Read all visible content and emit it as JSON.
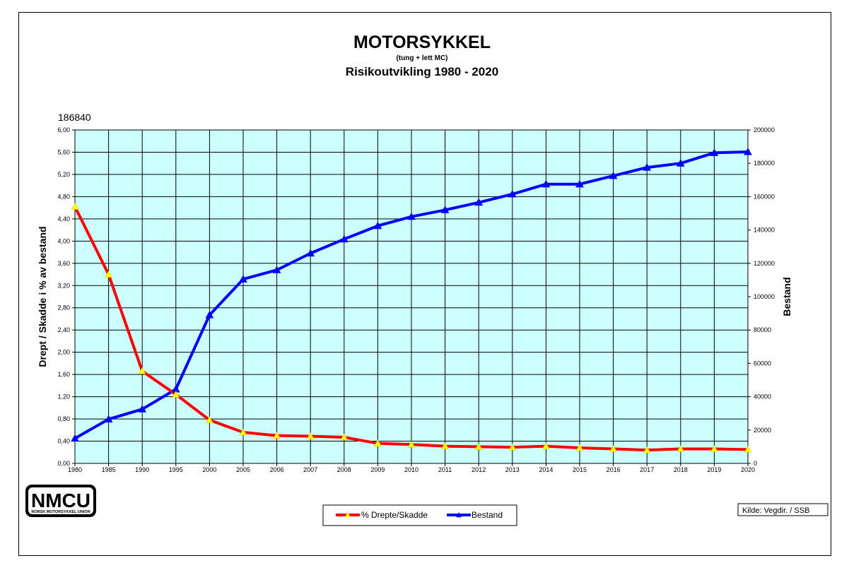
{
  "header": {
    "title": "MOTORSYKKEL",
    "subtitle": "(tung + lett MC)",
    "subtitle2": "Risikoutvikling 1980 - 2020",
    "top_value": "186840"
  },
  "logo": {
    "text": "NMCU",
    "tagline": "NORSK MOTORSYKKEL UNION"
  },
  "source": "Kilde: Vegdir. / SSB",
  "colors": {
    "plot_bg": "#ccffff",
    "series_red": "#ff0000",
    "series_blue": "#0000ff",
    "marker_yellow": "#ffff00",
    "marker_blue": "#0000ff"
  },
  "chart_data": {
    "type": "line",
    "categories": [
      "1980",
      "1985",
      "1990",
      "1995",
      "2000",
      "2005",
      "2006",
      "2007",
      "2008",
      "2009",
      "2010",
      "2011",
      "2012",
      "2013",
      "2014",
      "2015",
      "2016",
      "2017",
      "2018",
      "2019",
      "2020"
    ],
    "ylabel": "Drept / Skadde i % av bestand",
    "y2label": "Bestand",
    "ylim": [
      0,
      6
    ],
    "y2lim": [
      0,
      200000
    ],
    "yticks": [
      "0,00",
      "0,40",
      "0,80",
      "1,20",
      "1,60",
      "2,00",
      "2,40",
      "2,80",
      "3,20",
      "3,60",
      "4,00",
      "4,40",
      "4,80",
      "5,20",
      "5,60",
      "6,00"
    ],
    "y2ticks": [
      "0",
      "20000",
      "40000",
      "60000",
      "80000",
      "100000",
      "120000",
      "140000",
      "160000",
      "180000",
      "200000"
    ],
    "grid": true,
    "legend_position": "bottom-center",
    "series": [
      {
        "name": "% Drepte/Skadde",
        "axis": "left",
        "values": [
          4.62,
          3.4,
          1.66,
          1.24,
          0.78,
          0.56,
          0.5,
          0.49,
          0.47,
          0.36,
          0.34,
          0.31,
          0.3,
          0.29,
          0.31,
          0.28,
          0.26,
          0.24,
          0.26,
          0.26,
          0.25
        ]
      },
      {
        "name": "Bestand",
        "axis": "right",
        "values": [
          15000,
          26500,
          32500,
          44500,
          89000,
          110500,
          116000,
          126000,
          134500,
          142500,
          148000,
          152000,
          156500,
          161500,
          167500,
          167500,
          172500,
          177500,
          180000,
          186300,
          186840
        ]
      }
    ]
  }
}
